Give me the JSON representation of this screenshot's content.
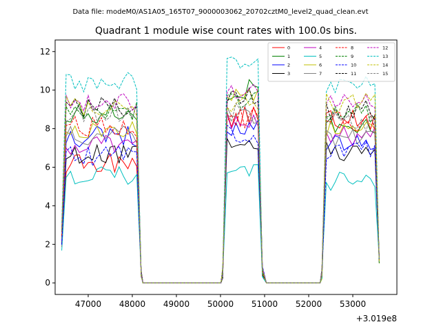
{
  "figure_title": "Data file: modeM0/AS1A05_165T07_9000003062_20702cztM0_level2_quad_clean.evt",
  "chart_data": {
    "type": "line",
    "title": "Quadrant 1 module wise count rates with 100.0s bins.",
    "xlabel": "",
    "ylabel": "",
    "x_offset_label": "+3.019e8",
    "xlim": [
      46250,
      54000
    ],
    "ylim": [
      -0.6,
      12.6
    ],
    "x_ticks": [
      47000,
      48000,
      49000,
      50000,
      51000,
      52000,
      53000
    ],
    "y_ticks": [
      0,
      2,
      4,
      6,
      8,
      10,
      12
    ],
    "x_tick_labels": [
      "47000",
      "48000",
      "49000",
      "50000",
      "51000",
      "52000",
      "53000"
    ],
    "y_tick_labels": [
      "0",
      "2",
      "4",
      "6",
      "8",
      "10",
      "12"
    ],
    "grid": false,
    "legend_position": "top-right",
    "segments": [
      {
        "start": 46400,
        "end": 48200
      },
      {
        "start": 50050,
        "end": 51000
      },
      {
        "start": 52300,
        "end": 53600
      }
    ],
    "series": [
      {
        "name": "0",
        "color": "#ff0000",
        "style": "solid",
        "levels": [
          6.2,
          8.6,
          8.5
        ]
      },
      {
        "name": "1",
        "color": "#008000",
        "style": "solid",
        "levels": [
          8.8,
          10.0,
          8.3
        ]
      },
      {
        "name": "2",
        "color": "#0000ff",
        "style": "solid",
        "levels": [
          7.6,
          8.0,
          7.2
        ]
      },
      {
        "name": "3",
        "color": "#000000",
        "style": "solid",
        "levels": [
          6.7,
          7.3,
          6.8
        ]
      },
      {
        "name": "4",
        "color": "#bf00bf",
        "style": "solid",
        "levels": [
          7.2,
          8.2,
          7.6
        ]
      },
      {
        "name": "5",
        "color": "#00bfbf",
        "style": "solid",
        "levels": [
          5.6,
          5.9,
          5.3
        ]
      },
      {
        "name": "6",
        "color": "#bfbf00",
        "style": "solid",
        "levels": [
          7.9,
          9.5,
          8.0
        ]
      },
      {
        "name": "7",
        "color": "#808080",
        "style": "solid",
        "levels": [
          7.6,
          8.6,
          7.5
        ]
      },
      {
        "name": "8",
        "color": "#ff0000",
        "style": "dashed",
        "levels": [
          8.1,
          8.6,
          8.3
        ]
      },
      {
        "name": "9",
        "color": "#008000",
        "style": "dashed",
        "levels": [
          9.0,
          9.6,
          8.8
        ]
      },
      {
        "name": "10",
        "color": "#0000ff",
        "style": "dashed",
        "levels": [
          6.6,
          7.7,
          6.9
        ]
      },
      {
        "name": "11",
        "color": "#000000",
        "style": "dashed",
        "levels": [
          9.1,
          9.6,
          9.0
        ]
      },
      {
        "name": "12",
        "color": "#bf00bf",
        "style": "dashed",
        "levels": [
          9.4,
          9.8,
          9.3
        ]
      },
      {
        "name": "13",
        "color": "#00bfbf",
        "style": "dashed",
        "levels": [
          10.4,
          11.2,
          10.2
        ]
      },
      {
        "name": "14",
        "color": "#bfbf00",
        "style": "dashed",
        "levels": [
          9.2,
          9.4,
          9.3
        ]
      },
      {
        "name": "15",
        "color": "#808080",
        "style": "dashed",
        "levels": [
          8.9,
          8.8,
          8.4
        ]
      }
    ]
  }
}
